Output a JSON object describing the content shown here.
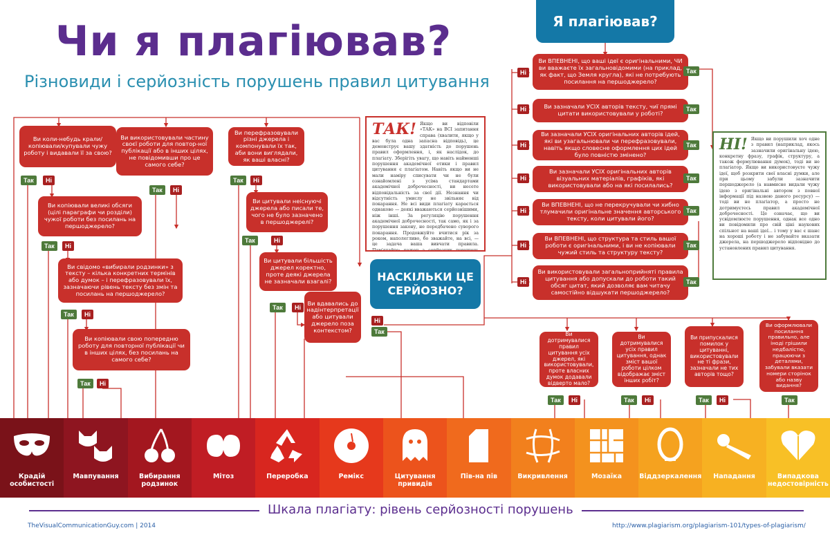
{
  "header": {
    "title": "Чи я плагіював?",
    "subtitle": "Різновиди і серйозність порушень правил цитування"
  },
  "labels": {
    "yes": "Так",
    "no": "Ні"
  },
  "left_flow": {
    "q1": "Ви коли-небудь крали/копіювали/купували чужу роботу і видавали її за свою?",
    "q2": "Ви використовували частину своєї роботи для повтор-ної публікації або в інших цілях, не повідомивши про це самого себе?",
    "q3": "Ви перефразовували різні джерела і компонували їх так, аби вони виглядали, як ваші власні?",
    "q4": "Ви копіювали великі обсяги (цілі параграфи чи розділи) чужої роботи без посилань на першоджерело?",
    "q5": "Ви цитували неіснуючі джерела або писали те, чого не було зазначено в першоджерелі?",
    "q6": "Ви свідомо «вибирали родзинки» з тексту – кілька конкретних термінів або думок – і перефразовували їх, зазначаючи рівень тексту без змін та посилань на першоджерело?",
    "q7": "Ви цитували більшість джерел коректно, проте деякі джерела не зазначали взагалі?",
    "q8": "Ви вдавались до надінтерпретації або цитували джерело поза контекстом?",
    "q9": "Ви копіювали свою попередню роботу для повторної публікації чи в інших цілях, без посилань на самого себе?"
  },
  "right_flow": {
    "header": "Я плагіював?",
    "r1": "Ви ВПЕВНЕНІ, що ваші ідеї є оригінальними, ЧИ ви вважаєте їх загальновідомими (на приклад, як факт, що Земля кругла), які не потребують посилання на першоджерело?",
    "r2": "Ви зазначали УСІХ авторів тексту, чиї прямі цитати використовували у роботі?",
    "r3": "Ви зазначали УСІХ оригінальних авторів ідей, які ви узагальнювали чи перефразовували, навіть якщо словесне оформлення цих ідей було повністю змінено?",
    "r4": "Ви зазначали УСІХ оригінальних авторів візуальних матеріалів, графіків, які використовували або на які посилались?",
    "r5": "Ви ВПЕВНЕНІ, що не перекручували чи хибно тлумачили оригінальне значення авторського тексту, коли цитували його?",
    "r6": "Ви ВПЕВНЕНІ, що структура та стиль вашої роботи є оригінальними, і ви не копіювали чужий стиль та структуру тексту?",
    "r7": "Ви використовували загальноприйняті правила цитування або допускали до роботи такий обсяг цитат, який дозволяє вам читачу самостійно відшукати першоджерело?"
  },
  "severity": {
    "label": "НАСКІЛЬКИ ЦЕ СЕРЙОЗНО?",
    "s1": "Ви дотримувалися правил цитування усіх джерел, які використовували, проте власних думок додавали відверто мало?",
    "s2": "Ви дотримувалися усіх правил цитування, однак зміст вашої роботи цілком відображає зміст інших робіт?",
    "s3": "Ви припускалися помилок у цитуванні, використовували не ті фрази, зазначали не тих авторів тощо?",
    "s4": "Ви оформлювали посилання правильно, але іноді грішили недбалістю, працюючи з деталями, забували вказати номери сторінок або назву видання?"
  },
  "notes": {
    "yes_head": "ТАК!",
    "yes_text": "Якщо ви відповіли «ТАК» на ВСІ запитання справа (хвалити, якщо у вас була одна запасна відповідь), це демонструє вашу здатність до порушень правил оформлення, і, як наслідок, до плагіату. Зберігіть увагу, що навіть найменші порушення академічної етики і правил цитування є плагіатом. Навіть якщо ви не мали наміру списувати чи не були ознайомлені з усіма стандартами академічної доброчесності, ви несете відповідальність за свої дії. Незнання чи відсутність умислу не звільняє від покарання. Не всі види плагіату карається однаково — деякі вважаються серйознішими, ніж інші. За регуляцію порушення академічної доброчесності, так само, як і за порушення закону, не передбачено суворого покарання. Продовжуйте вчитися рік за роком, наполегливо, бо зважайте, на всі, — це задача ваша вивчати правила. Пам'ятайте: кожен з серйозних порушень академічної доброчесності.",
    "no_head": "НІ!",
    "no_text": "Якщо ви порушили хоч одне з правил (наприклад, якось зазначили оригінальну ідею, конкретну фразу, графік, структуру, а також формулювання думок), тоді ви не плагіатор. Якщо ви використовуєте чужу ідеї, щоб розкрити свої власні думки, але при цьому забули зазначити першоджерело (а навмисне видали чужу ідею з оригінальні автором з повної інформації під назвою даного ресурсу) — тоді ви не плагіатор, а просто не дотримуєтесь правил академічної доброчесності. Це означає, що ви усвідомлюєте порушення, однак все одно ви повідомили про свій ціні наукових спільнот на ваші ідеї... і тому у вас є шанс на хороші роботу і не забувайте вказати джерела, на першоджерело відповідно до установлених правил цитування."
  },
  "scale": {
    "title": "Шкала плагіату: рівень серйозності порушень",
    "items": [
      {
        "label": "Крадій особистості",
        "icon": "mask-icon",
        "color": "#7a1219"
      },
      {
        "label": "Мавпування",
        "icon": "cats-icon",
        "color": "#8e1520"
      },
      {
        "label": "Вибирання родзинок",
        "icon": "cherries-icon",
        "color": "#a3171f"
      },
      {
        "label": "Мітоз",
        "icon": "mitosis-icon",
        "color": "#c01d24"
      },
      {
        "label": "Переробка",
        "icon": "recycle-icon",
        "color": "#d8261f"
      },
      {
        "label": "Ремікс",
        "icon": "disc-icon",
        "color": "#e6391c"
      },
      {
        "label": "Цитування привидів",
        "icon": "ghost-icon",
        "color": "#ec531c"
      },
      {
        "label": "Пів-на пів",
        "icon": "milk-carton-icon",
        "color": "#f06a1d"
      },
      {
        "label": "Викривлення",
        "icon": "distortion-icon",
        "color": "#f2801d"
      },
      {
        "label": "Мозаїка",
        "icon": "mosaic-icon",
        "color": "#f4921e"
      },
      {
        "label": "Віддзеркалення",
        "icon": "mirror-icon",
        "color": "#f5a21f"
      },
      {
        "label": "Нападання",
        "icon": "bat-icon",
        "color": "#f7b122"
      },
      {
        "label": "Випадкова недостовірність",
        "icon": "heart-icon",
        "color": "#f8c026"
      }
    ]
  },
  "footer": {
    "left": "TheVisualCommunicationGuy.com | 2014",
    "right": "http://www.plagiarism.org/plagiarism-101/types-of-plagiarism/"
  }
}
